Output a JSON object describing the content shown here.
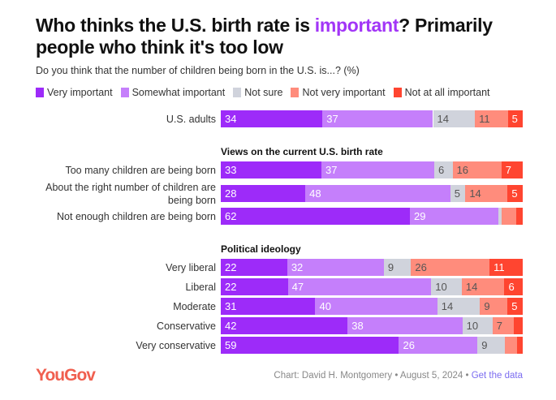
{
  "title_parts": {
    "pre": "Who thinks the U.S. birth rate is ",
    "highlight": "important",
    "post": "? Primarily people who think it's too low"
  },
  "subtitle": "Do you think that the number of children being born in the U.S. is...? (%)",
  "footer": {
    "logo": "YouGov",
    "credit": "Chart: David H. Montgomery • August 5, 2024 • ",
    "link": "Get the data"
  },
  "chart_data": {
    "type": "bar",
    "orientation": "horizontal-stacked",
    "series": [
      {
        "name": "Very important",
        "color": "#9d2bf9"
      },
      {
        "name": "Somewhat important",
        "color": "#c57ffb"
      },
      {
        "name": "Not sure",
        "color": "#d0d3dc"
      },
      {
        "name": "Not very important",
        "color": "#ff8c7c"
      },
      {
        "name": "Not at all important",
        "color": "#ff4530"
      }
    ],
    "groups": [
      {
        "heading": "",
        "rows": [
          {
            "label": "U.S. adults",
            "values": [
              34,
              37,
              14,
              11,
              5
            ],
            "shown": [
              true,
              true,
              true,
              true,
              true
            ]
          }
        ]
      },
      {
        "heading": "Views on the current U.S. birth rate",
        "rows": [
          {
            "label": "Too many children are being born",
            "values": [
              33,
              37,
              6,
              16,
              7
            ],
            "shown": [
              true,
              true,
              true,
              true,
              true
            ]
          },
          {
            "label": "About the right number of children are being born",
            "values": [
              28,
              48,
              5,
              14,
              5
            ],
            "shown": [
              true,
              true,
              true,
              true,
              true
            ]
          },
          {
            "label": "Not enough children are being born",
            "values": [
              62,
              29,
              1,
              5,
              2
            ],
            "shown": [
              true,
              true,
              false,
              false,
              false
            ]
          }
        ]
      },
      {
        "heading": "Political ideology",
        "rows": [
          {
            "label": "Very liberal",
            "values": [
              22,
              32,
              9,
              26,
              11
            ],
            "shown": [
              true,
              true,
              true,
              true,
              true
            ]
          },
          {
            "label": "Liberal",
            "values": [
              22,
              47,
              10,
              14,
              6
            ],
            "shown": [
              true,
              true,
              true,
              true,
              true
            ]
          },
          {
            "label": "Moderate",
            "values": [
              31,
              40,
              14,
              9,
              5
            ],
            "shown": [
              true,
              true,
              true,
              true,
              true
            ]
          },
          {
            "label": "Conservative",
            "values": [
              42,
              38,
              10,
              7,
              3
            ],
            "shown": [
              true,
              true,
              true,
              true,
              false
            ]
          },
          {
            "label": "Very conservative",
            "values": [
              59,
              26,
              9,
              4,
              2
            ],
            "shown": [
              true,
              true,
              true,
              false,
              false
            ]
          }
        ]
      }
    ],
    "xlim": [
      0,
      100
    ]
  }
}
